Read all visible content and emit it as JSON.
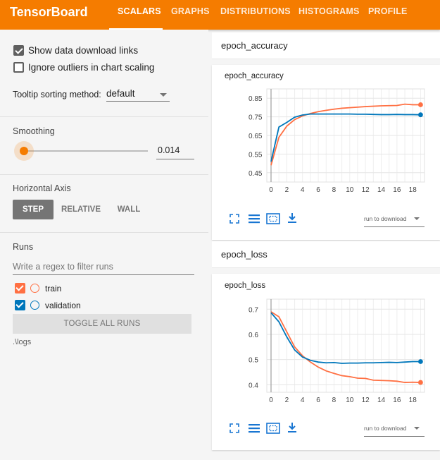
{
  "app": {
    "brand": "TensorBoard",
    "tabs": [
      "SCALARS",
      "GRAPHS",
      "DISTRIBUTIONS",
      "HISTOGRAMS",
      "PROFILE"
    ],
    "active_tab": "SCALARS",
    "accent_color": "#f57c00"
  },
  "sidebar": {
    "show_download_links": {
      "label": "Show data download links",
      "checked": true
    },
    "ignore_outliers": {
      "label": "Ignore outliers in chart scaling",
      "checked": false
    },
    "tooltip_sorting": {
      "label": "Tooltip sorting method:",
      "value": "default"
    },
    "smoothing": {
      "title": "Smoothing",
      "value": "0.014"
    },
    "horizontal_axis": {
      "title": "Horizontal Axis",
      "options": [
        "STEP",
        "RELATIVE",
        "WALL"
      ],
      "selected": "STEP"
    },
    "runs": {
      "title": "Runs",
      "filter_placeholder": "Write a regex to filter runs",
      "items": [
        {
          "label": "train",
          "color": "#ff7043",
          "checked": true
        },
        {
          "label": "validation",
          "color": "#0077bb",
          "checked": true
        }
      ],
      "toggle_label": "TOGGLE ALL RUNS",
      "logdir": ".\\logs"
    }
  },
  "groups": [
    {
      "title": "epoch_accuracy"
    },
    {
      "title": "epoch_loss"
    }
  ],
  "download_label": "run to download",
  "icons": [
    "fullscreen-icon",
    "data-list-icon",
    "fit-domain-icon",
    "download-icon"
  ],
  "chart_data": [
    {
      "type": "line",
      "title": "epoch_accuracy",
      "x": [
        0,
        1,
        2,
        3,
        4,
        5,
        6,
        7,
        8,
        9,
        10,
        11,
        12,
        13,
        14,
        15,
        16,
        17,
        18,
        19
      ],
      "xticks": [
        0,
        2,
        4,
        6,
        8,
        10,
        12,
        14,
        16,
        18
      ],
      "yticks": [
        0.45,
        0.55,
        0.65,
        0.75,
        0.85
      ],
      "ylim": [
        0.4,
        0.9
      ],
      "xlim": [
        0,
        19.5
      ],
      "series": [
        {
          "name": "train",
          "color": "#ff7043",
          "values": [
            0.49,
            0.64,
            0.7,
            0.735,
            0.755,
            0.768,
            0.778,
            0.785,
            0.791,
            0.796,
            0.799,
            0.802,
            0.805,
            0.807,
            0.809,
            0.81,
            0.811,
            0.818,
            0.815,
            0.815
          ]
        },
        {
          "name": "validation",
          "color": "#0077bb",
          "values": [
            0.51,
            0.695,
            0.72,
            0.748,
            0.76,
            0.765,
            0.765,
            0.765,
            0.765,
            0.765,
            0.765,
            0.764,
            0.764,
            0.763,
            0.762,
            0.762,
            0.763,
            0.762,
            0.762,
            0.761
          ]
        }
      ]
    },
    {
      "type": "line",
      "title": "epoch_loss",
      "x": [
        0,
        1,
        2,
        3,
        4,
        5,
        6,
        7,
        8,
        9,
        10,
        11,
        12,
        13,
        14,
        15,
        16,
        17,
        18,
        19
      ],
      "xticks": [
        0,
        2,
        4,
        6,
        8,
        10,
        12,
        14,
        16,
        18
      ],
      "yticks": [
        0.4,
        0.5,
        0.6,
        0.7
      ],
      "ylim": [
        0.37,
        0.74
      ],
      "xlim": [
        0,
        19.5
      ],
      "series": [
        {
          "name": "train",
          "color": "#ff7043",
          "values": [
            0.69,
            0.67,
            0.61,
            0.55,
            0.515,
            0.49,
            0.47,
            0.455,
            0.445,
            0.436,
            0.432,
            0.426,
            0.425,
            0.418,
            0.417,
            0.416,
            0.414,
            0.409,
            0.41,
            0.409
          ]
        },
        {
          "name": "validation",
          "color": "#0077bb",
          "values": [
            0.686,
            0.65,
            0.59,
            0.538,
            0.51,
            0.497,
            0.49,
            0.487,
            0.488,
            0.485,
            0.486,
            0.486,
            0.487,
            0.487,
            0.488,
            0.489,
            0.488,
            0.49,
            0.492,
            0.492
          ]
        }
      ]
    }
  ]
}
